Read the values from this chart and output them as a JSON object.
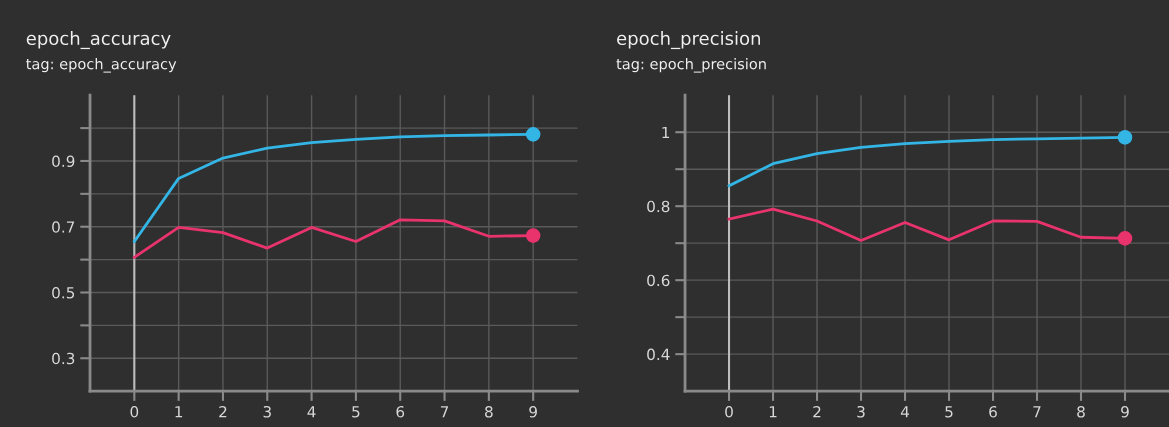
{
  "chart_data": [
    {
      "type": "line",
      "title": "epoch_accuracy",
      "subtitle": "tag: epoch_accuracy",
      "x": [
        0,
        1,
        2,
        3,
        4,
        5,
        6,
        7,
        8,
        9
      ],
      "series": [
        {
          "color": "#33b5e5",
          "values": [
            0.655,
            0.847,
            0.909,
            0.939,
            0.956,
            0.966,
            0.973,
            0.977,
            0.979,
            0.981
          ]
        },
        {
          "color": "#e8336d",
          "values": [
            0.607,
            0.698,
            0.682,
            0.635,
            0.698,
            0.655,
            0.721,
            0.718,
            0.671,
            0.673
          ]
        }
      ],
      "xlim": [
        -1,
        10
      ],
      "xticks": [
        0,
        1,
        2,
        3,
        4,
        5,
        6,
        7,
        8,
        9
      ],
      "ylim": [
        0.2,
        1.1
      ],
      "yticks": [
        0.3,
        {
          "value": 0.4,
          "label": null
        },
        0.5,
        {
          "value": 0.6,
          "label": null
        },
        0.7,
        {
          "value": 0.8,
          "label": null
        },
        0.9,
        {
          "value": 1.0,
          "label": null
        }
      ],
      "ref_lines": [
        {
          "axis": "x",
          "value": 0,
          "color": "#bdbdbd"
        }
      ],
      "grid": true,
      "line_style": "solid"
    },
    {
      "type": "line",
      "title": "epoch_precision",
      "subtitle": "tag: epoch_precision",
      "x": [
        0,
        1,
        2,
        3,
        4,
        5,
        6,
        7,
        8,
        9
      ],
      "series": [
        {
          "color": "#33b5e5",
          "values": [
            0.855,
            0.915,
            0.942,
            0.959,
            0.969,
            0.975,
            0.98,
            0.982,
            0.984,
            0.986
          ]
        },
        {
          "color": "#e8336d",
          "values": [
            0.765,
            0.792,
            0.76,
            0.707,
            0.756,
            0.709,
            0.76,
            0.759,
            0.716,
            0.713
          ]
        }
      ],
      "xlim": [
        -1,
        10
      ],
      "xticks": [
        0,
        1,
        2,
        3,
        4,
        5,
        6,
        7,
        8,
        9
      ],
      "ylim": [
        0.3,
        1.1
      ],
      "yticks": [
        0.4,
        {
          "value": 0.5,
          "label": null
        },
        0.6,
        {
          "value": 0.7,
          "label": null
        },
        0.8,
        {
          "value": 0.9,
          "label": null
        },
        1
      ],
      "ref_lines": [
        {
          "axis": "x",
          "value": 0,
          "color": "#bdbdbd"
        }
      ],
      "grid": true,
      "line_style": "solid"
    }
  ]
}
